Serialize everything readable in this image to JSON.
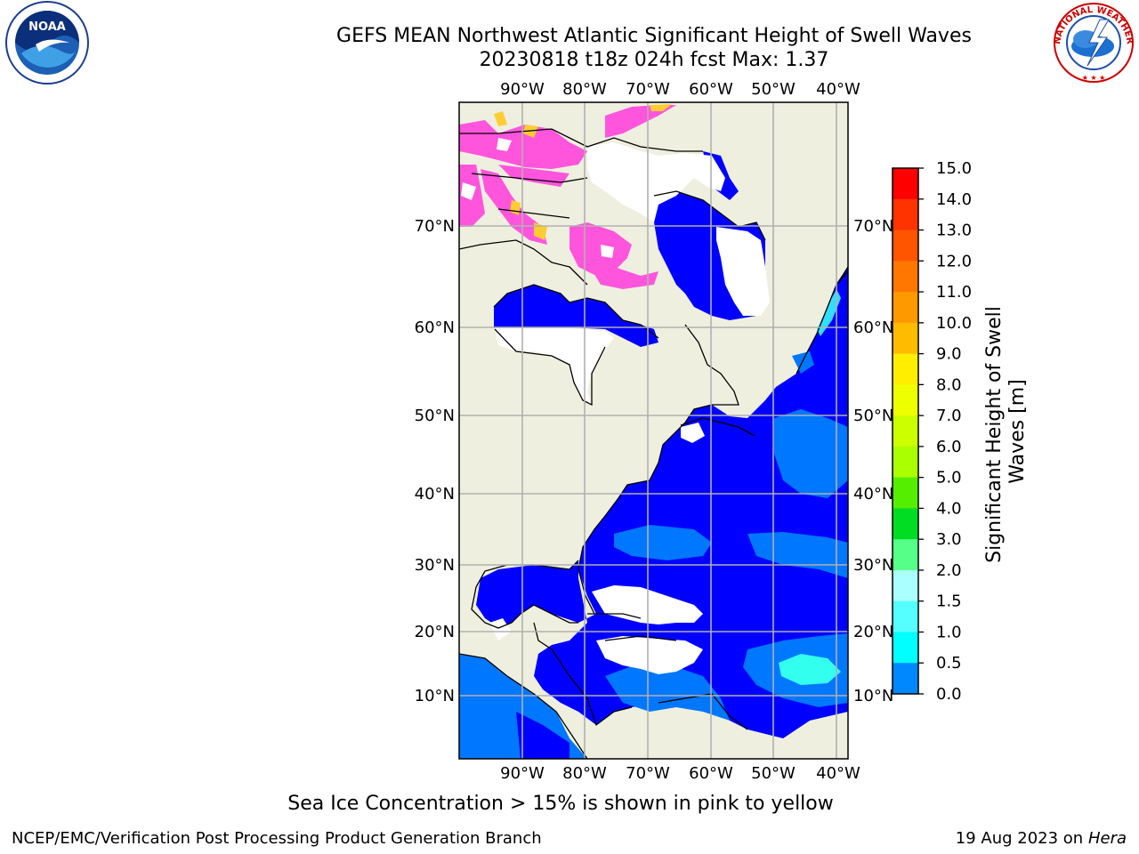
{
  "title_line1": "GEFS MEAN Northwest Atlantic Significant Height of Swell Waves",
  "title_line2": "20230818 t18z 024h fcst   Max: 1.37",
  "logos": {
    "left": "noaa-logo",
    "left_text": "NOAA",
    "right": "nws-logo",
    "right_text": "NATIONAL WEATHER SERVICE"
  },
  "lon_labels": [
    "90°W",
    "80°W",
    "70°W",
    "60°W",
    "50°W",
    "40°W"
  ],
  "lat_labels": [
    "70°N",
    "60°N",
    "50°N",
    "40°N",
    "30°N",
    "20°N",
    "10°N"
  ],
  "colorbar": {
    "label": "Significant Height of Swell Waves [m]",
    "ticks": [
      "15.0",
      "14.0",
      "13.0",
      "12.0",
      "11.0",
      "10.0",
      "9.0",
      "8.0",
      "7.0",
      "6.0",
      "5.0",
      "4.0",
      "3.0",
      "2.0",
      "1.5",
      "1.0",
      "0.5",
      "0.0"
    ],
    "colors": [
      "#ff0000",
      "#ff3300",
      "#ff5500",
      "#ff7700",
      "#ff9900",
      "#ffbb00",
      "#ffee00",
      "#eeff00",
      "#ccff00",
      "#aaff00",
      "#55ee00",
      "#00dd22",
      "#55ff88",
      "#aaffff",
      "#55ffff",
      "#00ffff",
      "#0088ff",
      "#0000ff"
    ]
  },
  "map_colors": {
    "land": "#efefdf",
    "ocean_0": "#0000ff",
    "ocean_05": "#0077ff",
    "ocean_1": "#33ddff",
    "ice": "#ff55dd",
    "no_data": "#ffffff"
  },
  "ice_note": "Sea Ice Concentration > 15% is shown in pink to yellow",
  "footer_left": "NCEP/EMC/Verification Post Processing Product Generation Branch",
  "footer_right_date": "19 Aug 2023 on",
  "footer_right_machine": "Hera"
}
